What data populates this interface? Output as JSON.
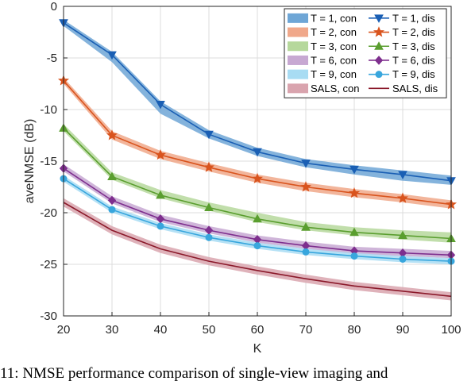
{
  "chart_data": {
    "type": "line",
    "title": "",
    "xlabel": "K",
    "ylabel": "aveNMSE (dB)",
    "x": [
      20,
      30,
      40,
      50,
      60,
      70,
      80,
      90,
      100
    ],
    "xlim": [
      20,
      100
    ],
    "ylim": [
      -30,
      0
    ],
    "xticks": [
      "20",
      "30",
      "40",
      "50",
      "60",
      "70",
      "80",
      "90",
      "100"
    ],
    "yticks": [
      "0",
      "-5",
      "-10",
      "-15",
      "-20",
      "-25",
      "-30"
    ],
    "grid": true,
    "legend_position": "top-right",
    "series": [
      {
        "name": "T = 1, dis",
        "band_name": "T = 1, con",
        "color": "#1a5fb4",
        "band_color": "#6ea6d6",
        "marker": "triangle-down",
        "values": [
          -1.6,
          -4.7,
          -9.5,
          -12.4,
          -14.1,
          -15.2,
          -15.8,
          -16.3,
          -16.9
        ],
        "band_lower": [
          -1.9,
          -5.4,
          -10.4,
          -12.8,
          -14.5,
          -15.6,
          -16.3,
          -16.9,
          -17.3
        ],
        "band_upper": [
          -1.3,
          -4.4,
          -9.2,
          -12.0,
          -13.7,
          -14.8,
          -15.4,
          -15.9,
          -16.4
        ]
      },
      {
        "name": "T = 2, dis",
        "band_name": "T = 2, con",
        "color": "#d9541e",
        "band_color": "#f0a88a",
        "marker": "star",
        "values": [
          -7.2,
          -12.5,
          -14.4,
          -15.6,
          -16.7,
          -17.5,
          -18.1,
          -18.6,
          -19.2
        ],
        "band_lower": [
          -7.5,
          -12.9,
          -14.8,
          -16.0,
          -17.1,
          -17.9,
          -18.5,
          -19.0,
          -19.6
        ],
        "band_upper": [
          -6.9,
          -12.1,
          -14.0,
          -15.2,
          -16.3,
          -17.1,
          -17.7,
          -18.2,
          -18.8
        ]
      },
      {
        "name": "T = 3, dis",
        "band_name": "T = 3, con",
        "color": "#5a9e2f",
        "band_color": "#b6d89c",
        "marker": "triangle-up",
        "values": [
          -11.8,
          -16.5,
          -18.3,
          -19.5,
          -20.6,
          -21.4,
          -21.9,
          -22.2,
          -22.5
        ],
        "band_lower": [
          -12.1,
          -16.8,
          -18.6,
          -19.8,
          -20.9,
          -21.7,
          -22.2,
          -22.6,
          -22.9
        ],
        "band_upper": [
          -11.4,
          -16.1,
          -17.8,
          -19.0,
          -20.0,
          -20.9,
          -21.4,
          -21.7,
          -21.9
        ]
      },
      {
        "name": "T = 6, dis",
        "band_name": "T = 6, con",
        "color": "#7e2f8e",
        "band_color": "#c7a8d2",
        "marker": "diamond",
        "values": [
          -15.7,
          -18.8,
          -20.6,
          -21.7,
          -22.6,
          -23.2,
          -23.7,
          -23.9,
          -24.1
        ],
        "band_lower": [
          -16.0,
          -19.1,
          -20.9,
          -22.0,
          -22.9,
          -23.5,
          -24.0,
          -24.2,
          -24.4
        ],
        "band_upper": [
          -15.3,
          -18.4,
          -20.2,
          -21.3,
          -22.2,
          -22.8,
          -23.3,
          -23.5,
          -23.7
        ]
      },
      {
        "name": "T = 9, dis",
        "band_name": "T = 9, con",
        "color": "#38a6dd",
        "band_color": "#a8dcf3",
        "marker": "circle",
        "values": [
          -16.7,
          -19.7,
          -21.3,
          -22.4,
          -23.2,
          -23.8,
          -24.2,
          -24.5,
          -24.7
        ],
        "band_lower": [
          -17.0,
          -20.0,
          -21.6,
          -22.7,
          -23.5,
          -24.1,
          -24.5,
          -24.8,
          -25.0
        ],
        "band_upper": [
          -16.4,
          -19.4,
          -21.0,
          -22.1,
          -22.9,
          -23.5,
          -23.9,
          -24.2,
          -24.4
        ]
      },
      {
        "name": "SALS, dis",
        "band_name": "SALS, con",
        "color": "#8b1a2b",
        "band_color": "#d9a4ae",
        "marker": "none",
        "values": [
          -19.0,
          -21.7,
          -23.5,
          -24.7,
          -25.6,
          -26.4,
          -27.1,
          -27.6,
          -28.1
        ],
        "band_lower": [
          -19.4,
          -22.1,
          -23.9,
          -25.1,
          -26.0,
          -26.8,
          -27.5,
          -28.0,
          -28.5
        ],
        "band_upper": [
          -18.6,
          -21.3,
          -23.1,
          -24.3,
          -25.2,
          -26.0,
          -26.7,
          -27.2,
          -27.7
        ]
      }
    ]
  },
  "caption": "11: NMSE performance comparison of single-view imaging and"
}
